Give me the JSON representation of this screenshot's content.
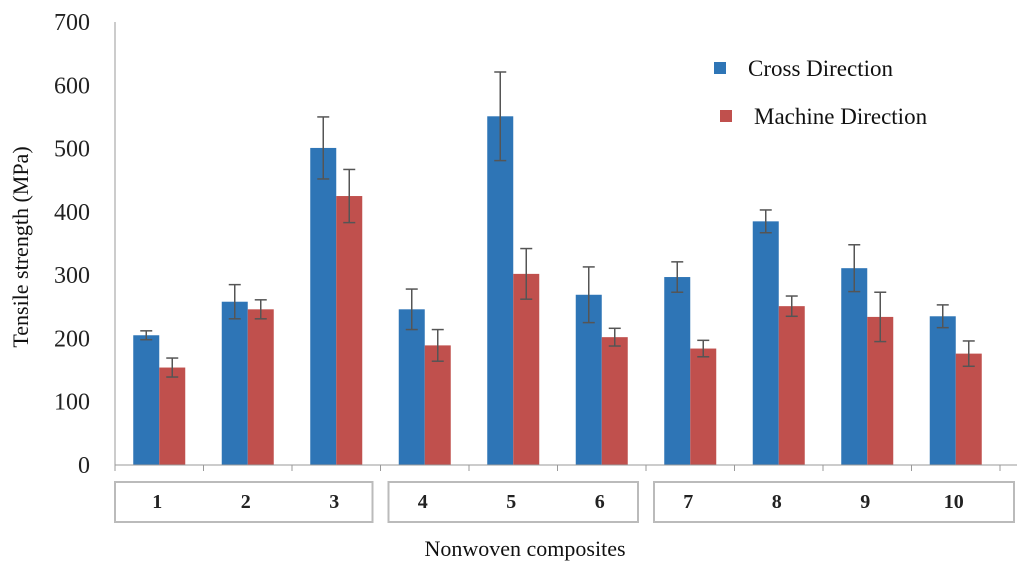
{
  "chart_data": {
    "type": "bar",
    "xlabel": "Nonwoven composites",
    "ylabel": "Tensile strength (MPa)",
    "ylim": [
      0,
      700
    ],
    "yticks": [
      0,
      100,
      200,
      300,
      400,
      500,
      600,
      700
    ],
    "categories": [
      "1",
      "2",
      "3",
      "4",
      "5",
      "6",
      "7",
      "8",
      "9",
      "10"
    ],
    "category_groups": [
      [
        1,
        3
      ],
      [
        4,
        6
      ],
      [
        7,
        10
      ]
    ],
    "legend_position": "top-right",
    "grid": false,
    "series": [
      {
        "name": "Cross Direction",
        "color": "#2E75B6",
        "values": [
          205,
          258,
          501,
          246,
          551,
          269,
          297,
          385,
          311,
          235
        ],
        "errors": [
          7,
          27,
          49,
          32,
          70,
          44,
          24,
          18,
          37,
          18
        ]
      },
      {
        "name": "Machine Direction",
        "color": "#C0504D",
        "values": [
          154,
          246,
          425,
          189,
          302,
          202,
          184,
          251,
          234,
          176
        ],
        "errors": [
          15,
          15,
          42,
          25,
          40,
          14,
          13,
          16,
          39,
          20
        ]
      }
    ]
  }
}
